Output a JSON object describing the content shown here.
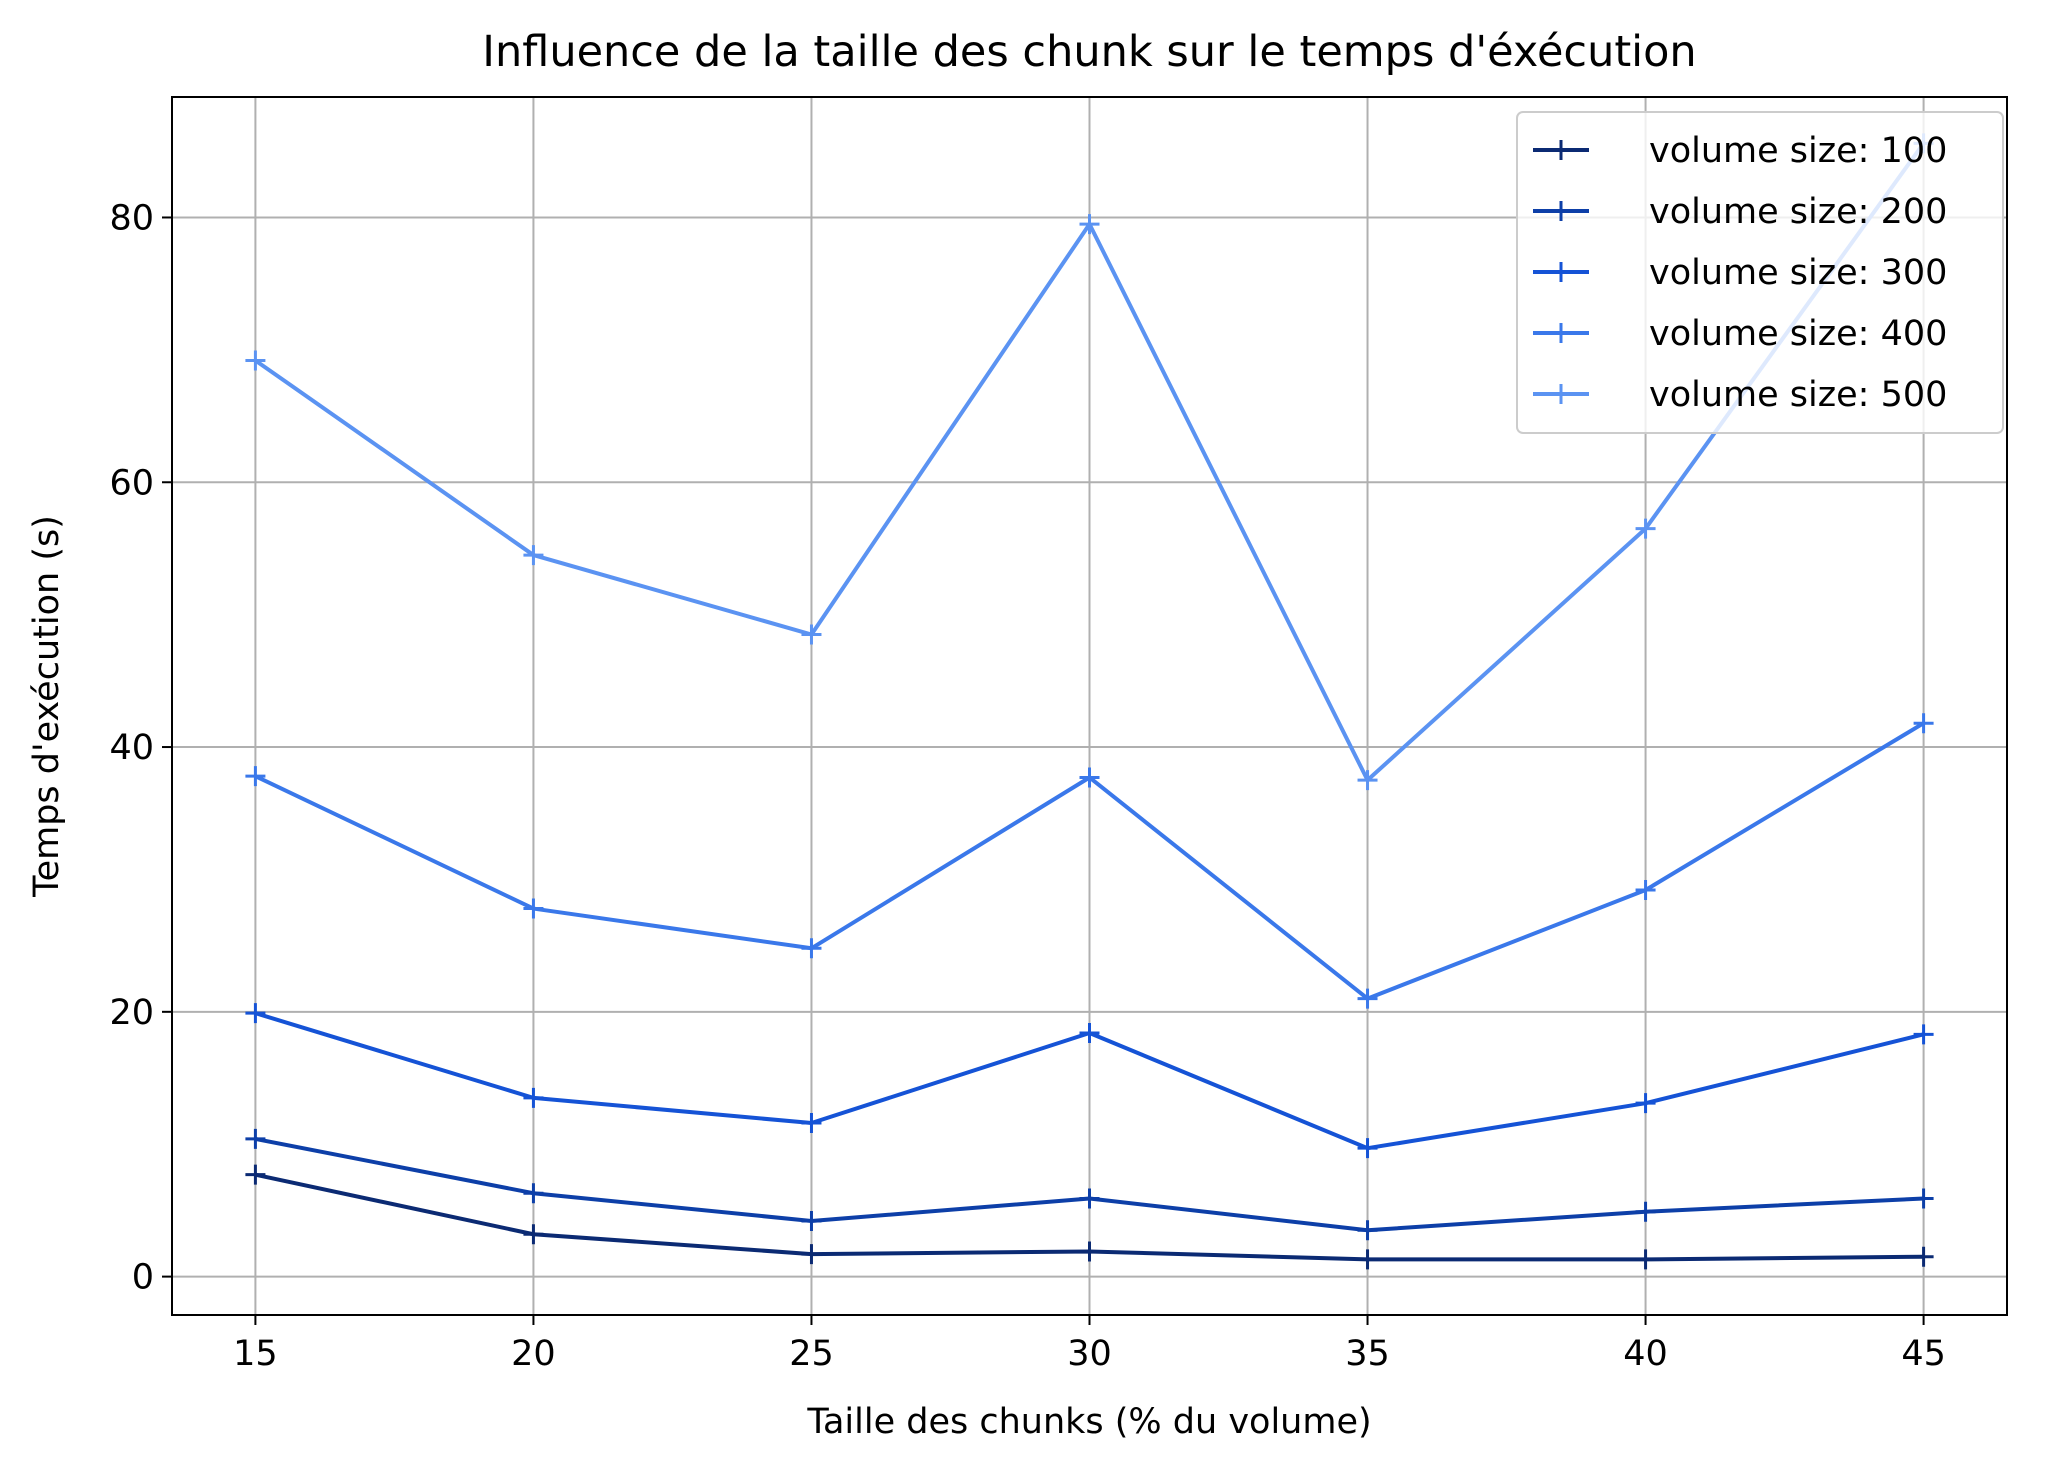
{
  "chart_data": {
    "type": "line",
    "title": "Influence de la taille des chunk sur le temps d'éxécution",
    "xlabel": "Taille des chunks (% du volume)",
    "ylabel": "Temps d'exécution (s)",
    "x": [
      15,
      20,
      25,
      30,
      35,
      40,
      45
    ],
    "xticks": [
      "15",
      "20",
      "25",
      "30",
      "35",
      "40",
      "45"
    ],
    "yticks": [
      "0",
      "20",
      "40",
      "60",
      "80"
    ],
    "ytick_values": [
      0,
      20,
      40,
      60,
      80
    ],
    "xlim": [
      13.5,
      46.5
    ],
    "ylim": [
      -2.9,
      89.1
    ],
    "grid": true,
    "legend_position": "top-right",
    "marker": "plus",
    "series": [
      {
        "name": "volume size: 100",
        "color": "#0b2a73",
        "values": [
          7.7,
          3.2,
          1.7,
          1.9,
          1.3,
          1.3,
          1.5
        ]
      },
      {
        "name": "volume size: 200",
        "color": "#0d3fa8",
        "values": [
          10.4,
          6.3,
          4.2,
          5.9,
          3.5,
          4.9,
          5.9
        ]
      },
      {
        "name": "volume size: 300",
        "color": "#1553d6",
        "values": [
          19.9,
          13.5,
          11.6,
          18.4,
          9.7,
          13.1,
          18.3
        ]
      },
      {
        "name": "volume size: 400",
        "color": "#3a78ea",
        "values": [
          37.8,
          27.8,
          24.8,
          37.7,
          21.0,
          29.2,
          41.8
        ]
      },
      {
        "name": "volume size: 500",
        "color": "#5b93f2",
        "values": [
          69.2,
          54.5,
          48.5,
          79.5,
          37.5,
          56.5,
          85.6
        ]
      }
    ]
  }
}
